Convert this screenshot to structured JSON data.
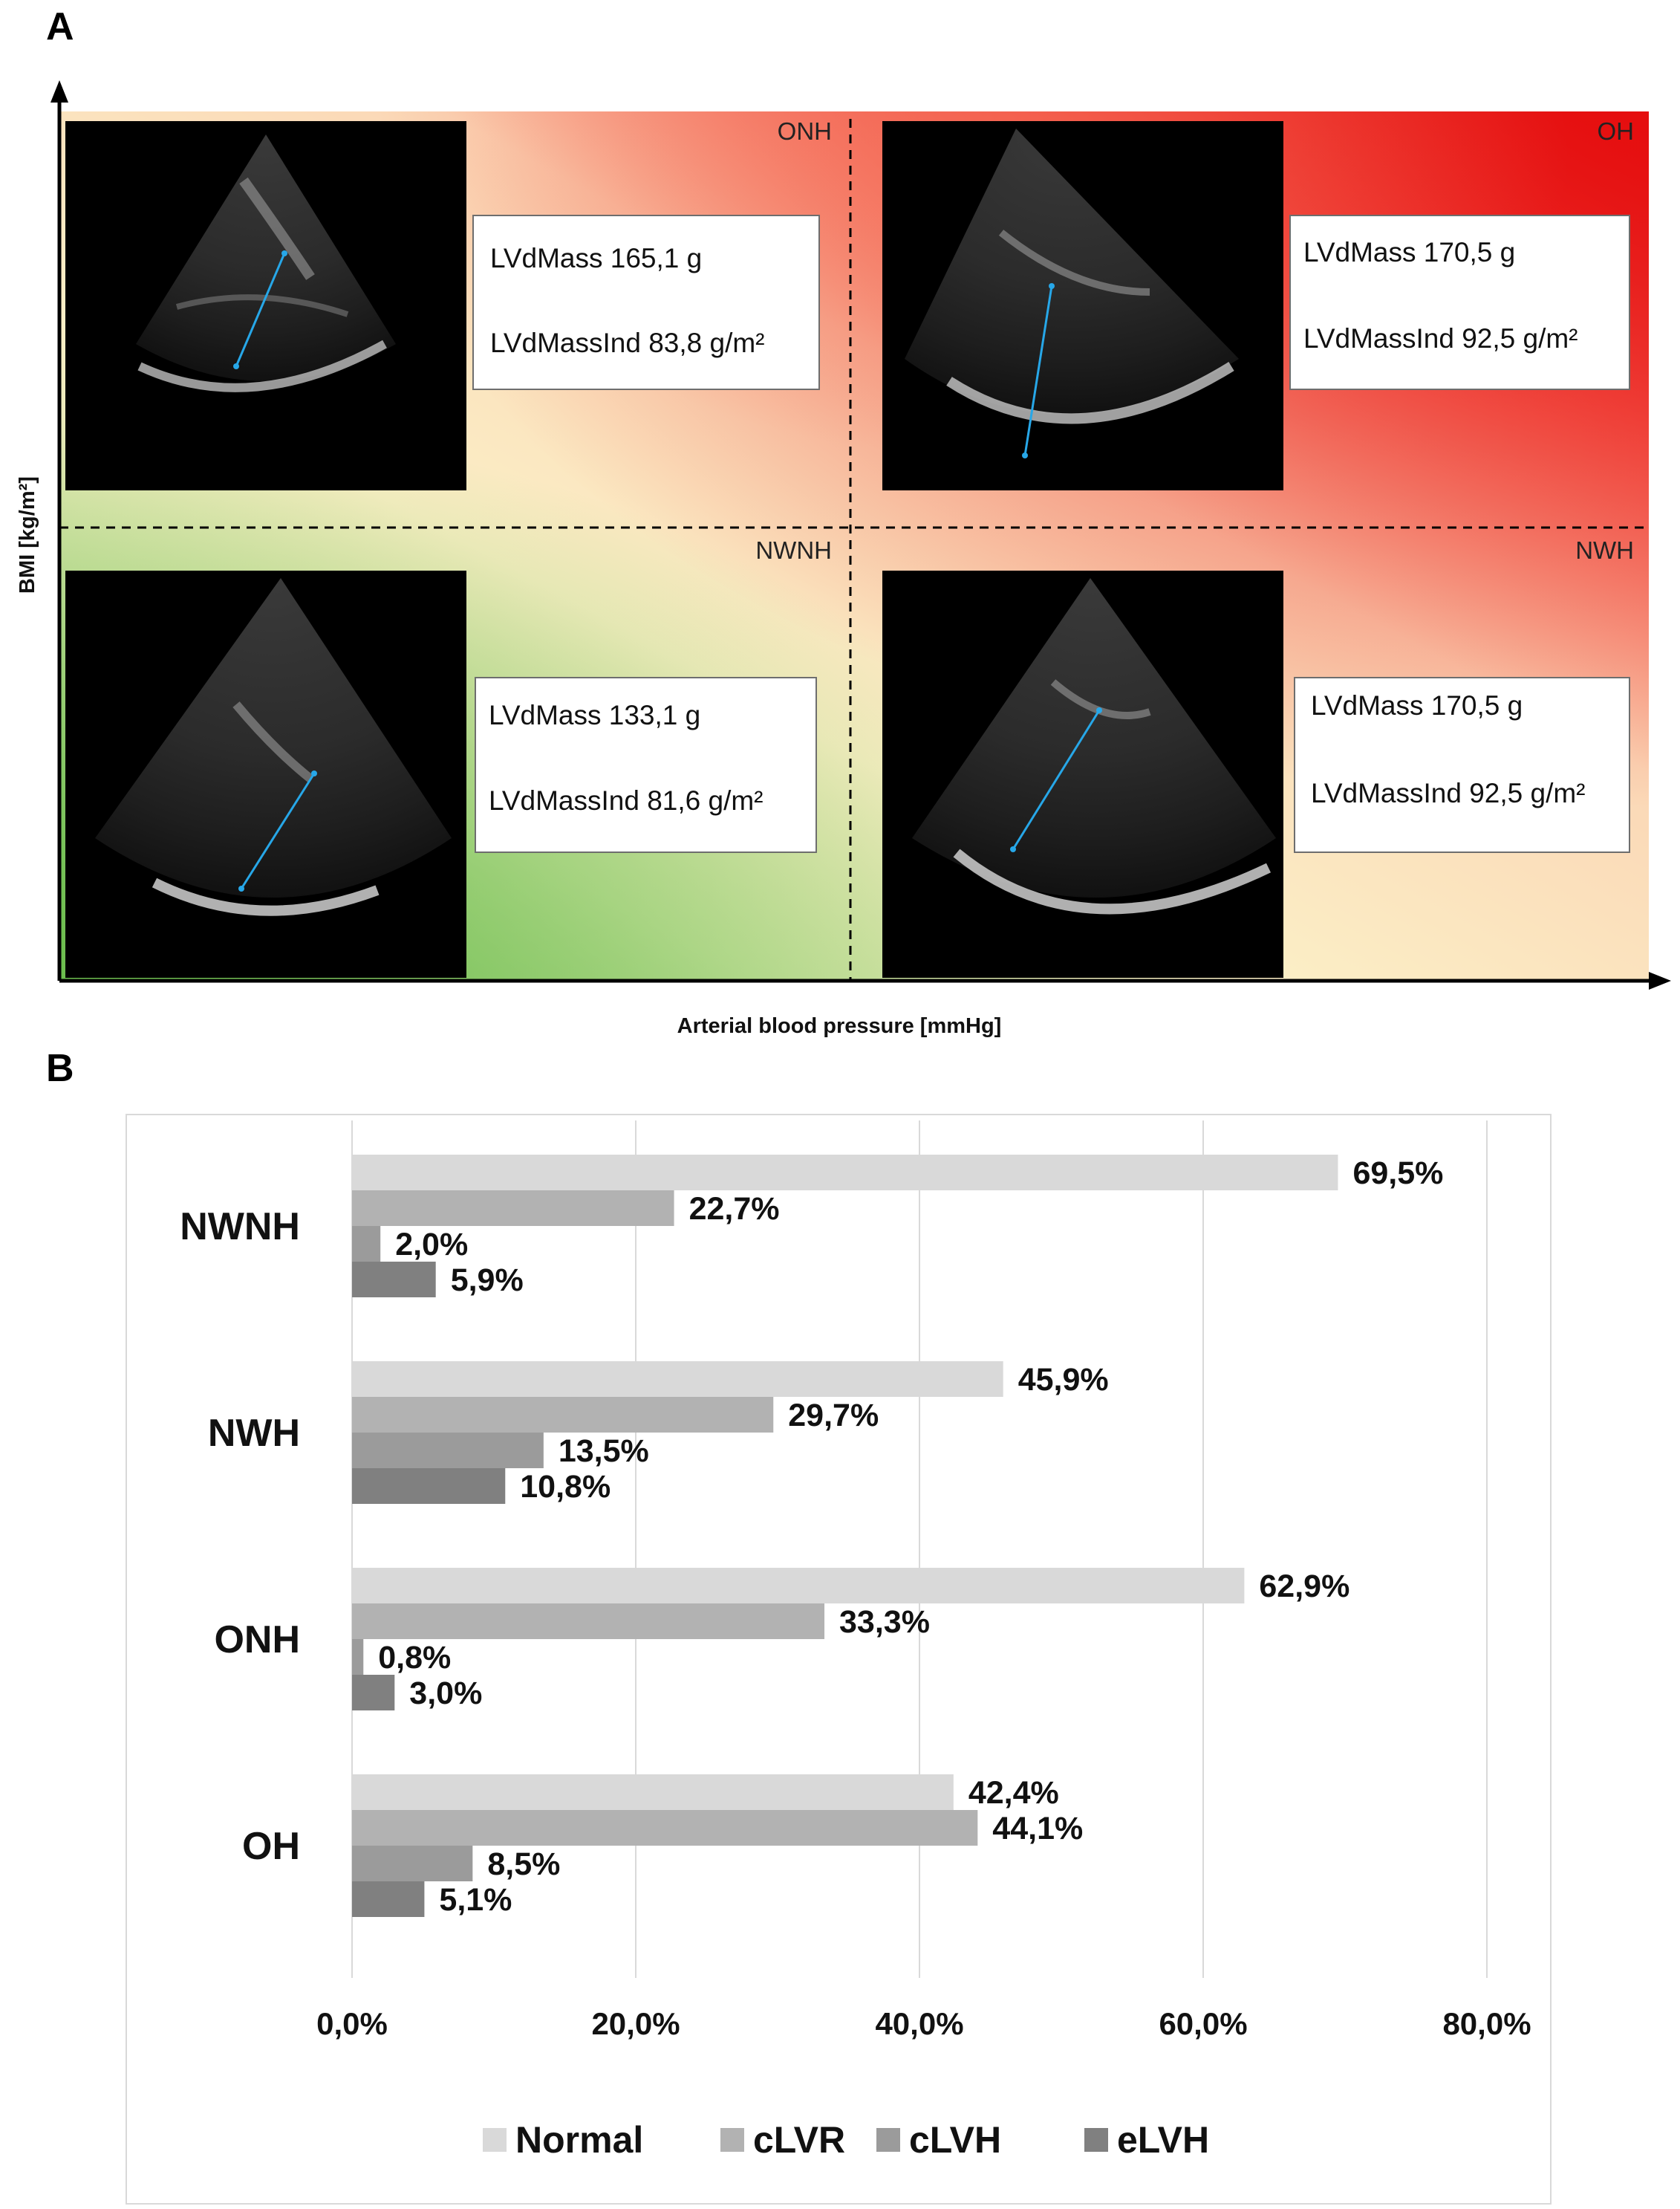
{
  "panel_a": {
    "letter": "A",
    "y_axis_title": "BMI [kg/m²]",
    "x_axis_title": "Arterial blood pressure [mmHg]",
    "quadrants": [
      {
        "id": "ONH",
        "label": "ONH",
        "mass": "LVdMass 165,1 g",
        "index": "LVdMassInd 83,8 g/m²"
      },
      {
        "id": "OH",
        "label": "OH",
        "mass": "LVdMass 170,5 g",
        "index": "LVdMassInd 92,5 g/m²"
      },
      {
        "id": "NWNH",
        "label": "NWNH",
        "mass": "LVdMass 133,1 g",
        "index": "LVdMassInd 81,6 g/m²"
      },
      {
        "id": "NWH",
        "label": "NWH",
        "mass": "LVdMass 170,5 g",
        "index": "LVdMassInd 92,5 g/m²"
      }
    ],
    "colors": {
      "red": "#e8191a",
      "green": "#7cc35f",
      "cream": "#fbeec4",
      "line": "#000000",
      "measure_line": "#27a7e8"
    }
  },
  "panel_b": {
    "letter": "B"
  },
  "chart_data": {
    "type": "bar",
    "orientation": "horizontal",
    "title": "",
    "xlabel": "",
    "ylabel": "",
    "categories": [
      "NWNH",
      "NWH",
      "ONH",
      "OH"
    ],
    "series": [
      {
        "name": "Normal",
        "color": "#d9d9d9",
        "values": [
          69.5,
          45.9,
          62.9,
          42.4
        ],
        "labels": [
          "69,5%",
          "45,9%",
          "62,9%",
          "42,4%"
        ]
      },
      {
        "name": "cLVR",
        "color": "#b2b2b2",
        "values": [
          22.7,
          29.7,
          33.3,
          44.1
        ],
        "labels": [
          "22,7%",
          "29,7%",
          "33,3%",
          "44,1%"
        ]
      },
      {
        "name": "cLVH",
        "color": "#9b9b9b",
        "values": [
          2.0,
          13.5,
          0.8,
          8.5
        ],
        "labels": [
          "2,0%",
          "13,5%",
          "0,8%",
          "8,5%"
        ]
      },
      {
        "name": "eLVH",
        "color": "#808080",
        "values": [
          5.9,
          10.8,
          3.0,
          5.1
        ],
        "labels": [
          "5,9%",
          "10,8%",
          "3,0%",
          "5,1%"
        ]
      }
    ],
    "xlim": [
      0,
      80
    ],
    "x_ticks": [
      0,
      20,
      40,
      60,
      80
    ],
    "x_tick_labels": [
      "0,0%",
      "20,0%",
      "40,0%",
      "60,0%",
      "80,0%"
    ],
    "grid": true,
    "legend_position": "bottom"
  }
}
